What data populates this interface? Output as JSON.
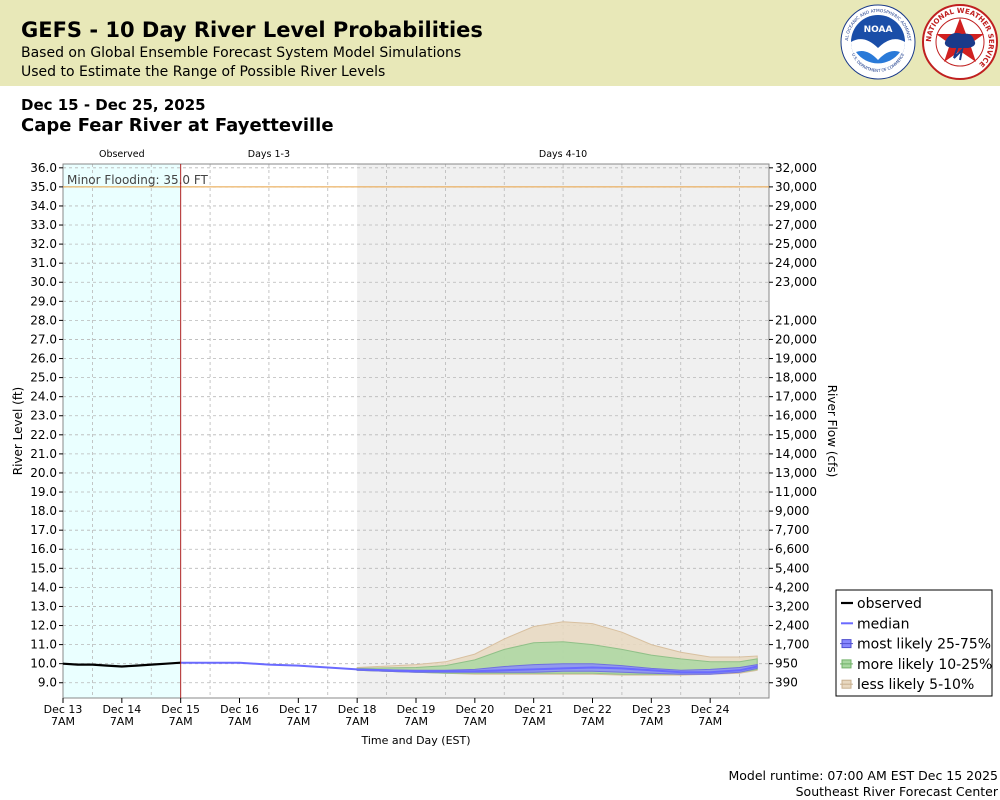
{
  "header": {
    "title": "GEFS - 10 Day River Level Probabilities",
    "subtitle_1": "Based on Global Ensemble Forecast System Model Simulations",
    "subtitle_2": "Used to Estimate the Range of Possible River Levels",
    "logo_noaa_text": "NOAA",
    "logo_noaa_ring": "NATIONAL OCEANIC AND ATMOSPHERIC ADMINISTRATION",
    "logo_noaa_ring_bottom": "U.S. DEPARTMENT OF COMMERCE",
    "logo_nws_ring": "NATIONAL WEATHER SERVICE"
  },
  "date_range": "Dec 15 - Dec 25, 2025",
  "station": "Cape Fear River at Fayetteville",
  "footer": {
    "runtime": "Model runtime: 07:00 AM EST Dec 15 2025",
    "center": "Southeast River Forecast Center"
  },
  "colors": {
    "header_bg": "#e8e8b8",
    "observed_bg": "#eaffff",
    "days4_bg": "#f0f0f0",
    "observed_line": "#000000",
    "median_line": "#6a6aff",
    "band_25_75": "#8888ff",
    "band_10_25": "#a8d8a0",
    "band_5_10": "#e8d8c0",
    "flood_line": "#e8a040",
    "now_line": "#b02020"
  },
  "chart_data": {
    "type": "area",
    "period_labels": [
      "Observed",
      "Days 1-3",
      "Days 4-10"
    ],
    "xlabel": "Time and Day (EST)",
    "ylabel": "River Level (ft)",
    "y2label": "River Flow (cfs)",
    "ylim": [
      8.2,
      36.2
    ],
    "grid": true,
    "legend_position": "bottom-right",
    "x_ticks": [
      {
        "day": "Dec 13",
        "time": "7AM"
      },
      {
        "day": "Dec 14",
        "time": "7AM"
      },
      {
        "day": "Dec 15",
        "time": "7AM"
      },
      {
        "day": "Dec 16",
        "time": "7AM"
      },
      {
        "day": "Dec 17",
        "time": "7AM"
      },
      {
        "day": "Dec 18",
        "time": "7AM"
      },
      {
        "day": "Dec 19",
        "time": "7AM"
      },
      {
        "day": "Dec 20",
        "time": "7AM"
      },
      {
        "day": "Dec 21",
        "time": "7AM"
      },
      {
        "day": "Dec 22",
        "time": "7AM"
      },
      {
        "day": "Dec 23",
        "time": "7AM"
      },
      {
        "day": "Dec 24",
        "time": "7AM"
      }
    ],
    "y_ticks": [
      "36.0",
      "35.0",
      "34.0",
      "33.0",
      "32.0",
      "31.0",
      "30.0",
      "29.0",
      "28.0",
      "27.0",
      "26.0",
      "25.0",
      "24.0",
      "23.0",
      "22.0",
      "21.0",
      "20.0",
      "19.0",
      "18.0",
      "17.0",
      "16.0",
      "15.0",
      "14.0",
      "13.0",
      "12.0",
      "11.0",
      "10.0",
      "9.0"
    ],
    "y2_ticks": [
      "32,000",
      "30,000",
      "29,000",
      "27,000",
      "25,000",
      "24,000",
      "23,000",
      "21,000",
      "20,000",
      "19,000",
      "18,000",
      "17,000",
      "16,000",
      "15,000",
      "14,000",
      "13,000",
      "11,000",
      "9,000",
      "7,700",
      "6,600",
      "5,400",
      "4,200",
      "3,200",
      "2,400",
      "1,700",
      "950",
      "390"
    ],
    "flood_stage": {
      "label": "Minor Flooding: 35.0 FT",
      "value": 35.0
    },
    "legend": [
      "observed",
      "median",
      "most likely 25-75%",
      "more likely 10-25%",
      "less likely 5-10%"
    ],
    "observed": {
      "x": [
        0,
        0.25,
        0.5,
        0.75,
        1.0,
        1.25,
        1.5,
        1.75,
        2.0
      ],
      "y": [
        10.0,
        9.95,
        9.95,
        9.9,
        9.85,
        9.9,
        9.95,
        10.0,
        10.05
      ]
    },
    "median": {
      "x": [
        2.0,
        3.0,
        3.5,
        4.0,
        4.5,
        5.0,
        5.5,
        6.0,
        6.5,
        7.0,
        7.5,
        8.0,
        8.5,
        9.0,
        9.5,
        10.0,
        10.5,
        11.0,
        11.5,
        11.8
      ],
      "y": [
        10.05,
        10.05,
        9.95,
        9.9,
        9.8,
        9.7,
        9.65,
        9.6,
        9.6,
        9.6,
        9.65,
        9.7,
        9.75,
        9.8,
        9.75,
        9.65,
        9.55,
        9.55,
        9.65,
        9.85
      ]
    },
    "band_5_10": {
      "x": [
        5.0,
        6.0,
        6.5,
        7.0,
        7.5,
        8.0,
        8.5,
        9.0,
        9.5,
        10.0,
        10.5,
        11.0,
        11.5,
        11.8
      ],
      "low": [
        9.65,
        9.55,
        9.5,
        9.45,
        9.45,
        9.45,
        9.45,
        9.45,
        9.4,
        9.4,
        9.4,
        9.45,
        9.5,
        9.65
      ],
      "high": [
        9.8,
        9.95,
        10.1,
        10.5,
        11.3,
        11.95,
        12.2,
        12.1,
        11.65,
        11.0,
        10.6,
        10.35,
        10.35,
        10.4
      ]
    },
    "band_10_25": {
      "x": [
        5.0,
        6.0,
        6.5,
        7.0,
        7.5,
        8.0,
        8.5,
        9.0,
        9.5,
        10.0,
        10.5,
        11.0,
        11.5,
        11.8
      ],
      "low": [
        9.65,
        9.55,
        9.5,
        9.5,
        9.5,
        9.5,
        9.5,
        9.5,
        9.45,
        9.45,
        9.45,
        9.5,
        9.55,
        9.7
      ],
      "high": [
        9.75,
        9.8,
        9.9,
        10.2,
        10.75,
        11.1,
        11.15,
        11.0,
        10.75,
        10.45,
        10.25,
        10.1,
        10.1,
        10.25
      ]
    },
    "band_25_75": {
      "x": [
        5.0,
        6.0,
        6.5,
        7.0,
        7.5,
        8.0,
        8.5,
        9.0,
        9.5,
        10.0,
        10.5,
        11.0,
        11.5,
        11.8
      ],
      "low": [
        9.65,
        9.55,
        9.55,
        9.55,
        9.55,
        9.55,
        9.6,
        9.6,
        9.55,
        9.5,
        9.45,
        9.45,
        9.55,
        9.75
      ],
      "high": [
        9.7,
        9.65,
        9.65,
        9.7,
        9.85,
        9.95,
        10.0,
        10.0,
        9.9,
        9.75,
        9.65,
        9.7,
        9.8,
        9.95
      ]
    }
  }
}
